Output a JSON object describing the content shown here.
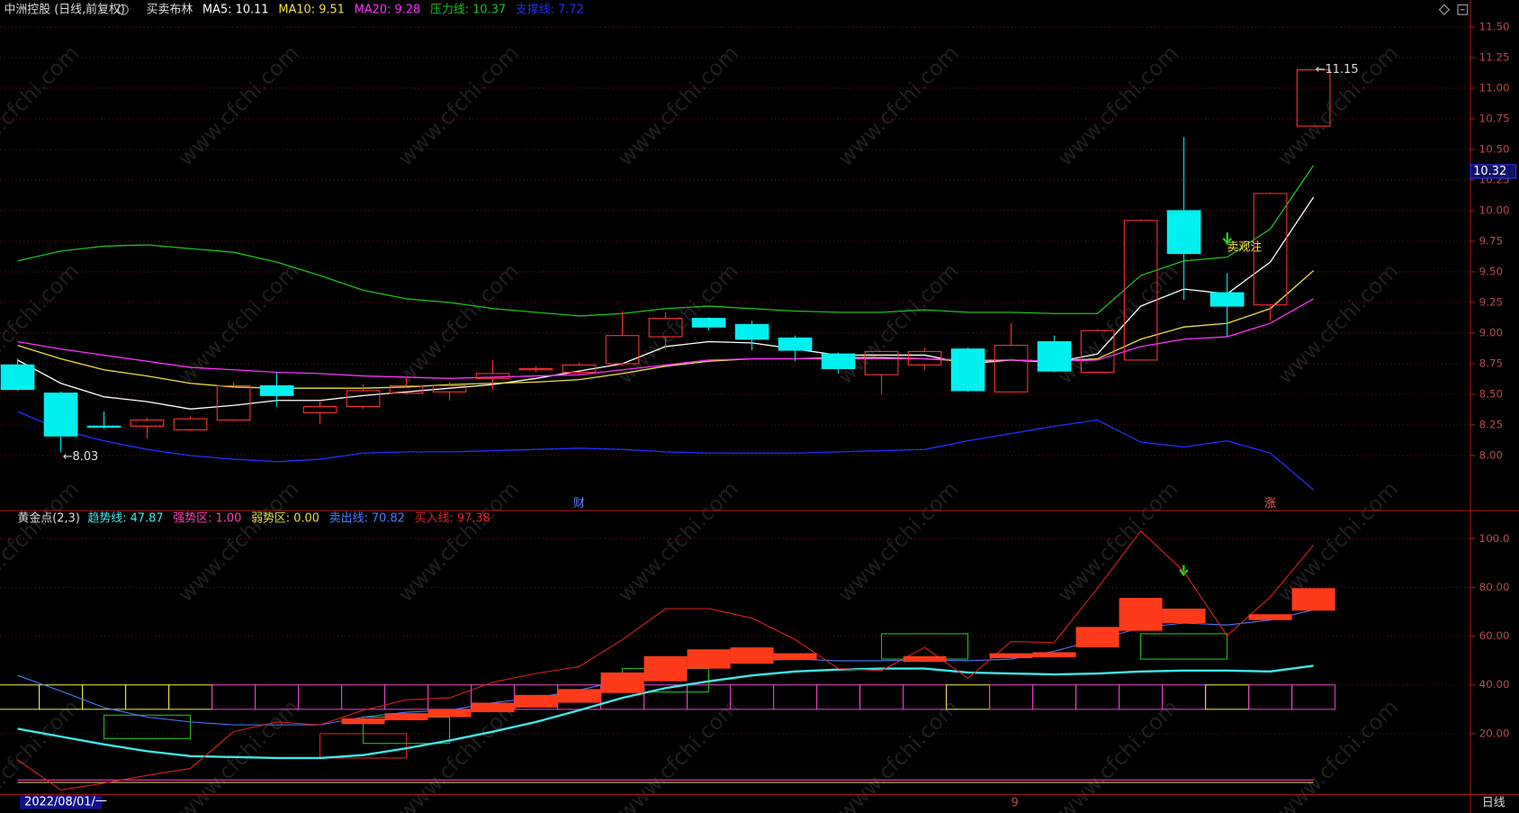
{
  "chart_data": [
    {
      "type": "candlestick",
      "title": "中洲控股 (日线,前复权)",
      "indicator": "买卖布林",
      "ylim": [
        7.55,
        11.72
      ],
      "yticks": [
        {
          "value": 11.5,
          "label": "11.50"
        },
        11.25,
        {
          "value": 11,
          "label": "11.00"
        },
        10.75,
        {
          "value": 10.5,
          "label": "10.50"
        },
        10.25,
        {
          "value": 10,
          "label": "10.00"
        },
        9.75,
        {
          "value": 9.5,
          "label": "9.50"
        },
        9.25,
        {
          "value": 9,
          "label": "9.00"
        },
        8.75,
        {
          "value": 8.5,
          "label": "8.50"
        },
        8.25,
        {
          "value": 8,
          "label": "8.00"
        }
      ],
      "grid": true,
      "up_color": "#ff3232",
      "down_color": "#00f0f0",
      "open": [
        8.74,
        8.51,
        8.24,
        8.24,
        8.21,
        8.29,
        8.57,
        8.35,
        8.4,
        8.51,
        8.52,
        8.63,
        8.7,
        8.68,
        8.75,
        8.97,
        9.12,
        9.07,
        8.96,
        8.83,
        8.66,
        8.74,
        8.87,
        8.52,
        8.93,
        8.68,
        8.78,
        10.0,
        9.33,
        9.23,
        10.69
      ],
      "high": [
        8.79,
        8.52,
        8.36,
        8.31,
        8.32,
        8.6,
        8.68,
        8.45,
        8.58,
        8.63,
        8.6,
        8.78,
        8.73,
        8.76,
        9.18,
        9.17,
        9.13,
        9.1,
        8.98,
        8.84,
        8.85,
        8.88,
        8.88,
        9.08,
        8.98,
        9.03,
        9.93,
        10.6,
        9.49,
        10.15,
        11.15
      ],
      "low": [
        8.53,
        8.03,
        8.22,
        8.14,
        8.2,
        8.28,
        8.4,
        8.26,
        8.38,
        8.5,
        8.45,
        8.54,
        8.68,
        8.66,
        8.73,
        8.87,
        9.02,
        8.86,
        8.77,
        8.67,
        8.5,
        8.7,
        8.52,
        8.52,
        8.68,
        8.68,
        8.78,
        9.27,
        8.97,
        9.1,
        10.69
      ],
      "close": [
        8.54,
        8.16,
        8.24,
        8.29,
        8.3,
        8.57,
        8.49,
        8.4,
        8.53,
        8.57,
        8.57,
        8.67,
        8.71,
        8.74,
        8.98,
        9.12,
        9.05,
        8.95,
        8.86,
        8.71,
        8.85,
        8.85,
        8.53,
        8.9,
        8.69,
        9.02,
        9.92,
        9.65,
        9.22,
        10.14,
        11.15
      ],
      "series": [
        {
          "label": "MA5: 10.11",
          "color": "#ffffff",
          "values": [
            8.78,
            8.59,
            8.48,
            8.44,
            8.38,
            8.41,
            8.45,
            8.45,
            8.49,
            8.52,
            8.55,
            8.58,
            8.63,
            8.69,
            8.75,
            8.89,
            8.93,
            8.92,
            8.87,
            8.82,
            8.82,
            8.82,
            8.75,
            8.78,
            8.76,
            8.83,
            9.22,
            9.36,
            9.32,
            9.58,
            10.11
          ]
        },
        {
          "label": "MA10: 9.51",
          "color": "#f0e040",
          "values": [
            8.9,
            8.79,
            8.7,
            8.65,
            8.59,
            8.56,
            8.55,
            8.55,
            8.55,
            8.56,
            8.58,
            8.59,
            8.6,
            8.62,
            8.67,
            8.73,
            8.77,
            8.79,
            8.79,
            8.8,
            8.8,
            8.79,
            8.77,
            8.78,
            8.77,
            8.79,
            8.95,
            9.05,
            9.08,
            9.2,
            9.51
          ]
        },
        {
          "label": "MA20: 9.28",
          "color": "#ff30ff",
          "values": [
            8.93,
            8.87,
            8.82,
            8.77,
            8.72,
            8.7,
            8.68,
            8.67,
            8.65,
            8.64,
            8.63,
            8.64,
            8.65,
            8.66,
            8.7,
            8.74,
            8.78,
            8.79,
            8.79,
            8.79,
            8.79,
            8.79,
            8.78,
            8.78,
            8.77,
            8.78,
            8.89,
            8.95,
            8.97,
            9.08,
            9.28
          ]
        },
        {
          "label": "压力线: 10.37",
          "color": "#20c020",
          "values": [
            9.59,
            9.67,
            9.71,
            9.72,
            9.69,
            9.66,
            9.58,
            9.47,
            9.35,
            9.28,
            9.25,
            9.2,
            9.17,
            9.14,
            9.16,
            9.2,
            9.22,
            9.2,
            9.18,
            9.17,
            9.17,
            9.19,
            9.17,
            9.17,
            9.16,
            9.16,
            9.47,
            9.59,
            9.62,
            9.85,
            10.37
          ]
        },
        {
          "label": "支撑线: 7.72",
          "color": "#2030ff",
          "values": [
            8.36,
            8.21,
            8.12,
            8.05,
            8.0,
            7.97,
            7.95,
            7.97,
            8.02,
            8.03,
            8.03,
            8.04,
            8.05,
            8.06,
            8.05,
            8.03,
            8.02,
            8.02,
            8.02,
            8.03,
            8.04,
            8.05,
            8.12,
            8.18,
            8.24,
            8.29,
            8.11,
            8.07,
            8.12,
            8.02,
            7.72
          ]
        }
      ],
      "annotations": [
        {
          "label": "←8.03",
          "value": 8.03,
          "index": 1
        },
        {
          "label": "←11.15",
          "value": 11.15,
          "index": 30
        }
      ],
      "signal": {
        "label": "卖观注",
        "index": 28
      },
      "last_price": 10.32,
      "markers": [
        {
          "label": "财",
          "index": 13
        },
        {
          "label": "涨",
          "index": 29
        }
      ],
      "cursor_date": "2022/08/01/一",
      "x_marks": [
        {
          "label": "9",
          "index": 23
        }
      ],
      "period": "日线",
      "watermark": "www.cfchi.com"
    },
    {
      "type": "indicator",
      "title": "黄金点(2,3)",
      "ylim": [
        -5,
        111.5
      ],
      "yticks": [
        {
          "value": 100,
          "label": "100.0"
        },
        {
          "value": 80,
          "label": "80.00"
        },
        {
          "value": 60,
          "label": "60.00"
        },
        {
          "value": 40,
          "label": "40.00"
        },
        {
          "value": 20,
          "label": "20.00"
        }
      ],
      "grid": true,
      "band": {
        "low": 30,
        "high": 40,
        "colors": [
          "#e0e040",
          "#e0e040",
          "#e0e040",
          "#e0e040",
          "#e0e040",
          "#e040c0",
          "#e040c0",
          "#e040c0",
          "#e040c0",
          "#e040c0",
          "#e040c0",
          "#e040c0",
          "#e040c0",
          "#e040c0",
          "#e040c0",
          "#e040c0",
          "#e040c0",
          "#e040c0",
          "#e040c0",
          "#e040c0",
          "#e040c0",
          "#e040c0",
          "#e0e040",
          "#e040c0",
          "#e040c0",
          "#e040c0",
          "#e040c0",
          "#e040c0",
          "#e0e040",
          "#e040c0",
          "#e040c0"
        ]
      },
      "boxes": [
        {
          "from": 7,
          "to": 9,
          "low": 10,
          "high": 20,
          "color": "#e02020"
        },
        {
          "from": 2,
          "to": 4,
          "low": 18,
          "high": 27.6,
          "color": "#20c020"
        },
        {
          "from": 8,
          "to": 10,
          "low": 16,
          "high": 26.8,
          "color": "#20c020"
        },
        {
          "from": 14,
          "to": 16,
          "low": 37.1,
          "high": 46.7,
          "color": "#20c020"
        },
        {
          "from": 20,
          "to": 22,
          "low": 50.6,
          "high": 61,
          "color": "#20c020"
        },
        {
          "from": 26,
          "to": 28,
          "low": 50.6,
          "high": 61,
          "color": "#20c020"
        }
      ],
      "bars": {
        "color": "#ff3a1a",
        "low": [
          null,
          null,
          null,
          null,
          null,
          null,
          null,
          null,
          23.9,
          25.5,
          26.8,
          28.8,
          30.7,
          32.7,
          36.7,
          41.5,
          46.7,
          48.7,
          50.2,
          null,
          null,
          49.5,
          null,
          51.0,
          51.4,
          55.4,
          62.2,
          65.4,
          null,
          66.6,
          70.5
        ],
        "high": [
          null,
          null,
          null,
          null,
          null,
          null,
          null,
          null,
          26.3,
          28.4,
          30.0,
          32.7,
          35.9,
          38.3,
          45.1,
          51.8,
          54.6,
          55.4,
          53.0,
          null,
          null,
          51.8,
          null,
          53.0,
          53.4,
          63.8,
          75.7,
          71.3,
          null,
          69.0,
          79.7
        ]
      },
      "series": [
        {
          "label": "趋势线: 47.87",
          "color": "#40e8e8",
          "width": 2.2,
          "values": [
            22.0,
            18.8,
            15.6,
            12.8,
            10.8,
            10.4,
            10.0,
            10.0,
            11.2,
            14.0,
            17.2,
            20.8,
            24.8,
            29.6,
            34.7,
            38.7,
            41.5,
            43.9,
            45.5,
            46.3,
            46.7,
            46.7,
            45.1,
            44.7,
            44.3,
            44.7,
            45.5,
            45.9,
            45.9,
            45.5,
            47.87
          ]
        },
        {
          "label": "强势区: 1.00",
          "color": "#ff40b0",
          "width": 1,
          "values": [
            1,
            1,
            1,
            1,
            1,
            1,
            1,
            1,
            1,
            1,
            1,
            1,
            1,
            1,
            1,
            1,
            1,
            1,
            1,
            1,
            1,
            1,
            1,
            1,
            1,
            1,
            1,
            1,
            1,
            1,
            1.0
          ]
        },
        {
          "label": "弱势区: 0.00",
          "color": "#e0e040",
          "width": 1,
          "values": [
            0,
            0,
            0,
            0,
            0,
            0,
            0,
            0,
            0,
            0,
            0,
            0,
            0,
            0,
            0,
            0,
            0,
            0,
            0,
            0,
            0,
            0,
            0,
            0,
            0,
            0,
            0,
            0,
            0,
            0,
            0.0
          ]
        },
        {
          "label": "卖出线: 70.82",
          "color": "#4a7cff",
          "width": 1,
          "values": [
            43.9,
            37.5,
            30.7,
            26.8,
            24.8,
            23.6,
            23.6,
            23.6,
            26.8,
            28.8,
            29.6,
            32.7,
            34.7,
            37.9,
            41.9,
            45.5,
            49.5,
            49.9,
            50.6,
            49.9,
            49.9,
            50.2,
            49.9,
            50.6,
            53.8,
            58.6,
            63.4,
            65.4,
            64.6,
            66.6,
            70.82
          ]
        },
        {
          "label": "买入线: 97.38",
          "color": "#e02020",
          "width": 1,
          "values": [
            9.3,
            -3.1,
            -0.3,
            2.9,
            5.7,
            20.8,
            24.8,
            23.6,
            29.6,
            33.9,
            34.7,
            41.1,
            44.7,
            47.5,
            58.6,
            71.3,
            71.3,
            67.4,
            58.6,
            46.7,
            45.9,
            55.4,
            42.7,
            57.8,
            57.4,
            79.7,
            103.2,
            86.5,
            60.2,
            76.1,
            97.38
          ]
        }
      ]
    }
  ]
}
